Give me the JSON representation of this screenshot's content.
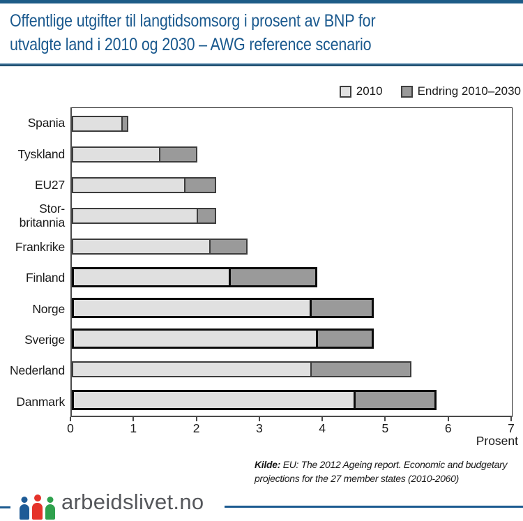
{
  "header": {
    "title_line1": "Offentlige utgifter til langtidsomsorg i prosent av BNP for",
    "title_line2": "utvalgte land i 2010 og 2030 – AWG reference scenario"
  },
  "chart_data": {
    "type": "bar",
    "orientation": "horizontal",
    "stacked": true,
    "categories": [
      "Spania",
      "Tyskland",
      "EU27",
      "Stor-\nbritannia",
      "Frankrike",
      "Finland",
      "Norge",
      "Sverige",
      "Nederland",
      "Danmark"
    ],
    "series": [
      {
        "name": "2010",
        "values": [
          0.8,
          1.4,
          1.8,
          2.0,
          2.2,
          2.5,
          3.8,
          3.9,
          3.8,
          4.5
        ],
        "color": "#e0e0e0"
      },
      {
        "name": "Endring 2010–2030",
        "values": [
          0.1,
          0.6,
          0.5,
          0.3,
          0.6,
          1.4,
          1.0,
          0.9,
          1.6,
          1.3
        ],
        "color": "#9a9a9a"
      }
    ],
    "totals_2030": [
      0.9,
      2.0,
      2.3,
      2.3,
      2.8,
      3.9,
      4.8,
      4.8,
      5.4,
      5.8
    ],
    "highlighted_categories": [
      "Finland",
      "Norge",
      "Sverige",
      "Danmark"
    ],
    "xlabel": "Prosent",
    "xlim": [
      0,
      7
    ],
    "xticks": [
      0,
      1,
      2,
      3,
      4,
      5,
      6,
      7
    ],
    "legend_position": "top-right",
    "grid": false
  },
  "source": {
    "label": "Kilde:",
    "line1": "EU: The 2012 Ageing report. Economic and budgetary",
    "line2": "projections for the 27 member states (2010-2060)"
  },
  "footer": {
    "wordmark": "arbeidslivet.no"
  },
  "colors": {
    "accent-blue": "#1a598e",
    "topbar-blue": "#1d5c87",
    "divider-top": "#4a81a8",
    "divider-bottom": "#123e5d",
    "bar-light": "#e0e0e0",
    "bar-dark": "#9a9a9a",
    "bar-border": "#3c3c3c",
    "bar-border-strong": "#0b0b0b",
    "axis-gray": "#4a4a4a",
    "text-black": "#1a1a1a",
    "footer-line-blue": "#1c5a90",
    "logo-text-gray": "#55575b",
    "person-blue": "#1e5b96",
    "person-red": "#e5332a",
    "person-green": "#2fa14d"
  }
}
